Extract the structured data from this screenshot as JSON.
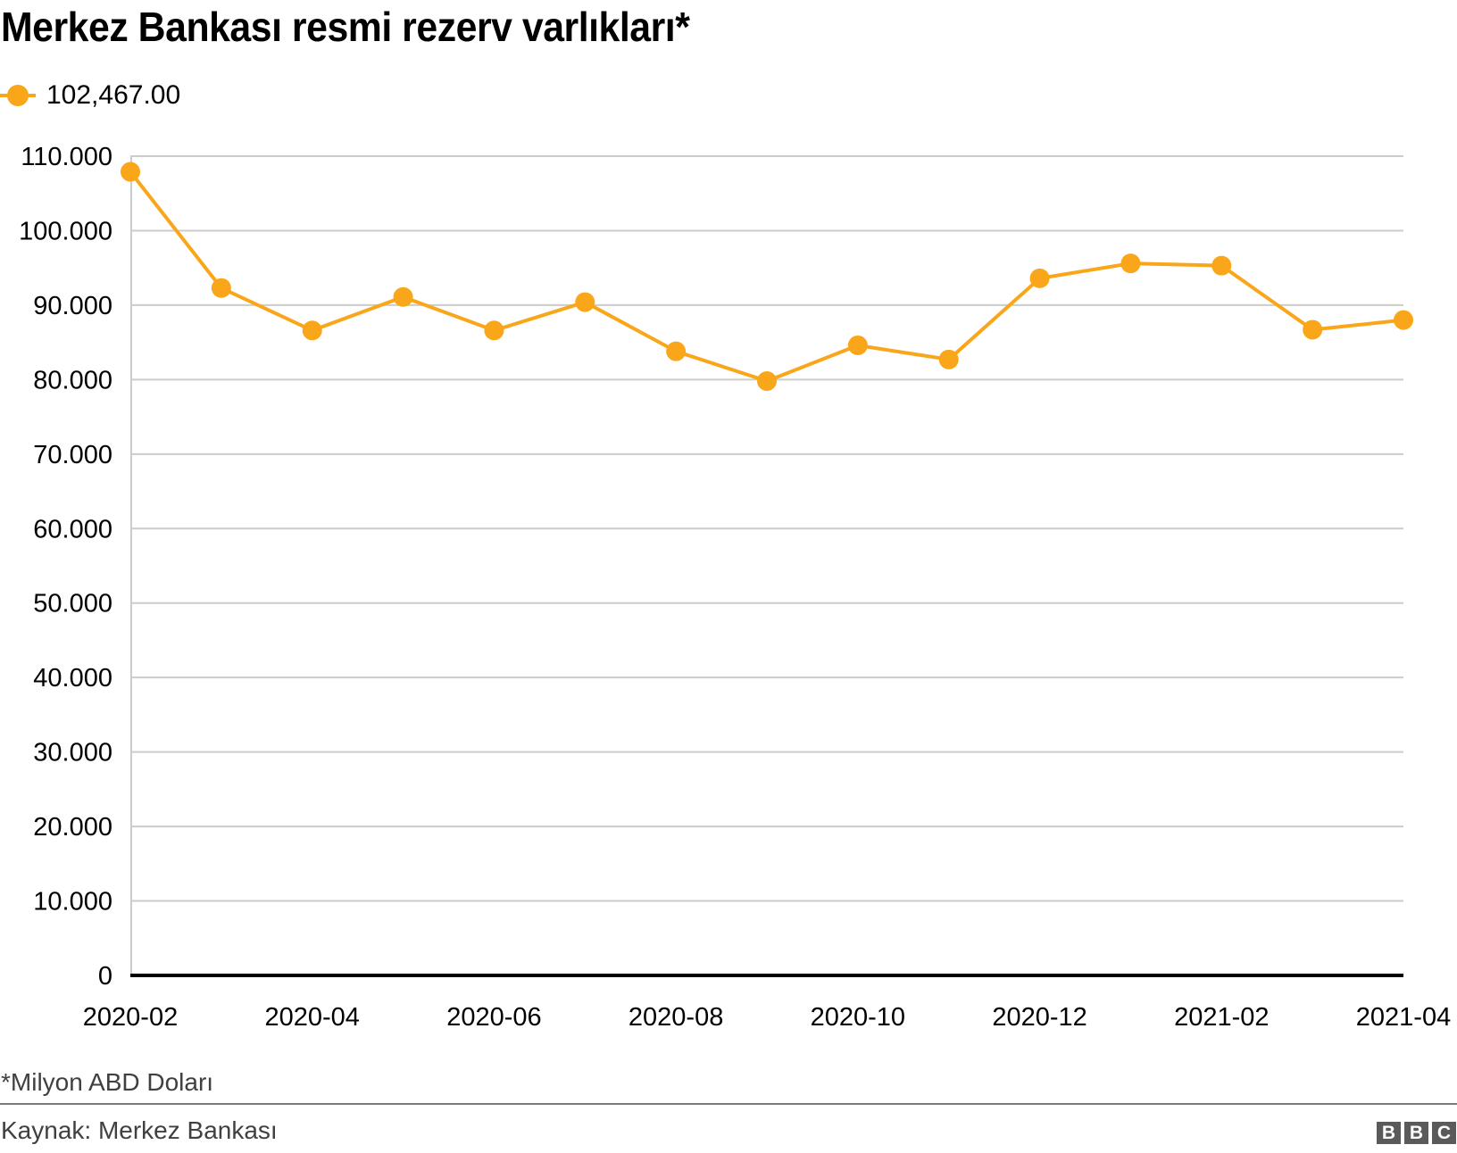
{
  "header": {
    "title": "Merkez Bankası resmi rezerv varlıkları*"
  },
  "legend": {
    "items": [
      {
        "label": "102,467.00",
        "color": "#FAA61A"
      }
    ]
  },
  "footer": {
    "note": "*Milyon ABD Doları",
    "source": "Kaynak: Merkez Bankası",
    "logo_letters": [
      "B",
      "B",
      "C"
    ]
  },
  "colors": {
    "series": "#FAA61A",
    "grid": "#cccccc",
    "axis": "#000000",
    "text": "#000000",
    "footer_text": "#404040"
  },
  "chart_data": {
    "type": "line",
    "title": "Merkez Bankası resmi rezerv varlıkları*",
    "xlabel": "",
    "ylabel": "",
    "ylim": [
      0,
      110000
    ],
    "yticks": [
      0,
      10000,
      20000,
      30000,
      40000,
      50000,
      60000,
      70000,
      80000,
      90000,
      100000,
      110000
    ],
    "ytick_labels": [
      "0",
      "10.000",
      "20.000",
      "30.000",
      "40.000",
      "50.000",
      "60.000",
      "70.000",
      "80.000",
      "90.000",
      "100.000",
      "110.000"
    ],
    "x": [
      "2020-02",
      "2020-03",
      "2020-04",
      "2020-05",
      "2020-06",
      "2020-07",
      "2020-08",
      "2020-09",
      "2020-10",
      "2020-11",
      "2020-12",
      "2021-01",
      "2021-02",
      "2021-03",
      "2021-04"
    ],
    "xtick_labels": [
      "2020-02",
      "2020-04",
      "2020-06",
      "2020-08",
      "2020-10",
      "2020-12",
      "2021-02",
      "2021-04"
    ],
    "series": [
      {
        "name": "102,467.00",
        "values": [
          107900,
          92300,
          86600,
          91100,
          86600,
          90400,
          83800,
          79800,
          84600,
          82700,
          93600,
          95600,
          95300,
          86700,
          88000
        ]
      }
    ],
    "grid": true,
    "legend_position": "top-left",
    "footnote": "*Milyon ABD Doları",
    "source": "Kaynak: Merkez Bankası"
  }
}
